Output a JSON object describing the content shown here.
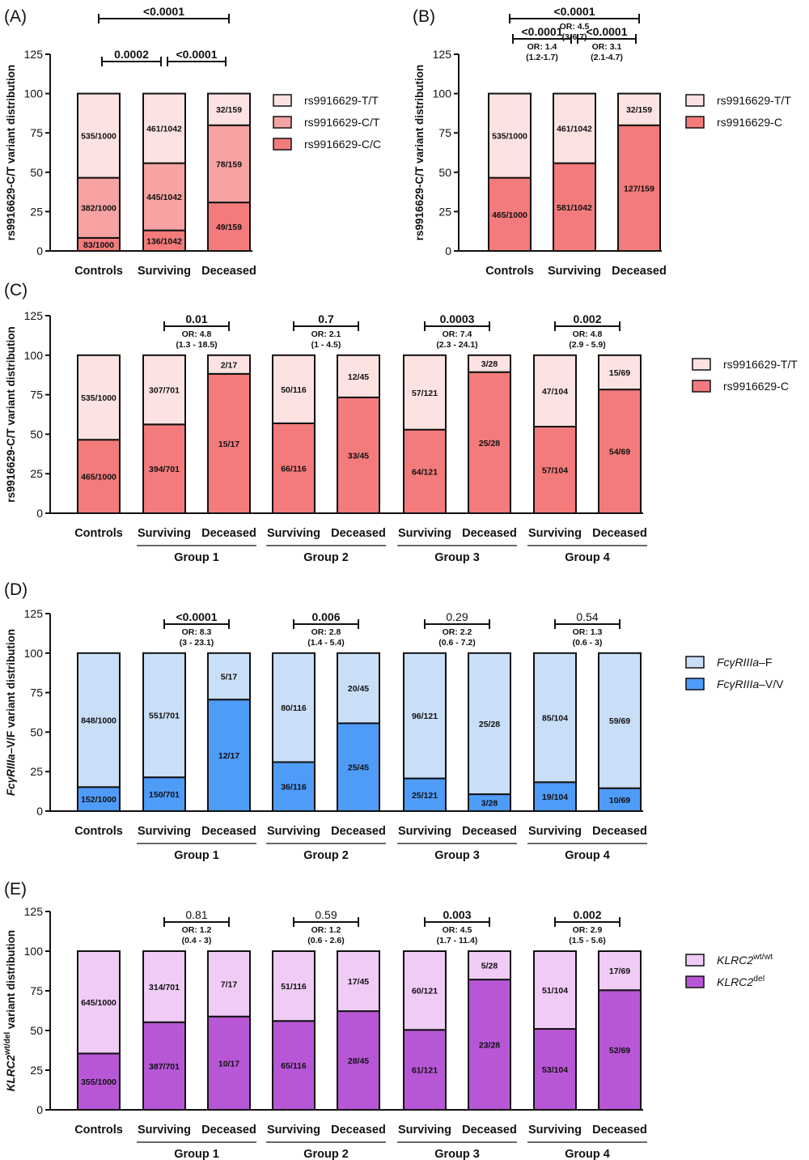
{
  "chart_data": [
    {
      "id": "A",
      "type": "bar",
      "panel_label": "(A)",
      "ylabel": "rs9916629-C/T variant distribution",
      "ylim": [
        0,
        125
      ],
      "yticks": [
        0,
        25,
        50,
        75,
        100,
        125
      ],
      "categories": [
        "Controls",
        "Surviving",
        "Deceased"
      ],
      "groups": [],
      "series": [
        {
          "name": "rs9916629-C/C",
          "color": "#f37b7b",
          "values": [
            8.3,
            13.05,
            30.82
          ],
          "labels": [
            "83/1000",
            "136/1042",
            "49/159"
          ]
        },
        {
          "name": "rs9916629-C/T",
          "color": "#f7a3a3",
          "values": [
            38.2,
            42.71,
            49.06
          ],
          "labels": [
            "382/1000",
            "445/1042",
            "78/159"
          ]
        },
        {
          "name": "rs9916629-T/T",
          "color": "#fde2e2",
          "values": [
            53.5,
            44.24,
            20.13
          ],
          "labels": [
            "535/1000",
            "461/1042",
            "32/159"
          ]
        }
      ],
      "legend": [
        "rs9916629-T/T",
        "rs9916629-C/T",
        "rs9916629-C/C"
      ],
      "legend_position": "right",
      "comparisons": [
        {
          "from": 0,
          "to": 1,
          "p": "0.0002",
          "p_bold": true,
          "or": "",
          "ci": "",
          "level": 1
        },
        {
          "from": 1,
          "to": 2,
          "p": "<0.0001",
          "p_bold": true,
          "or": "",
          "ci": "",
          "level": 1
        },
        {
          "from": 0,
          "to": 2,
          "p": "<0.0001",
          "p_bold": true,
          "or": "",
          "ci": "",
          "level": 2
        }
      ]
    },
    {
      "id": "B",
      "type": "bar",
      "panel_label": "(B)",
      "ylabel": "rs9916629-C/T variant distribution",
      "ylim": [
        0,
        125
      ],
      "yticks": [
        0,
        25,
        50,
        75,
        100,
        125
      ],
      "categories": [
        "Controls",
        "Surviving",
        "Deceased"
      ],
      "groups": [],
      "series": [
        {
          "name": "rs9916629-C",
          "color": "#f37b7b",
          "values": [
            46.5,
            55.76,
            79.87
          ],
          "labels": [
            "465/1000",
            "581/1042",
            "127/159"
          ]
        },
        {
          "name": "rs9916629-T/T",
          "color": "#fde2e2",
          "values": [
            53.5,
            44.24,
            20.13
          ],
          "labels": [
            "535/1000",
            "461/1042",
            "32/159"
          ]
        }
      ],
      "legend": [
        "rs9916629-T/T",
        "rs9916629-C"
      ],
      "legend_position": "right",
      "comparisons": [
        {
          "from": 0,
          "to": 1,
          "p": "<0.0001",
          "p_bold": true,
          "or": "OR: 1.4",
          "ci": "(1.2-1.7)",
          "level": 1
        },
        {
          "from": 1,
          "to": 2,
          "p": "<0.0001",
          "p_bold": true,
          "or": "OR: 3.1",
          "ci": "(2.1-4.7)",
          "level": 1
        },
        {
          "from": 0,
          "to": 2,
          "p": "<0.0001",
          "p_bold": true,
          "or": "OR: 4.5",
          "ci": "(3-6.7)",
          "level": 2
        }
      ]
    },
    {
      "id": "C",
      "type": "bar",
      "panel_label": "(C)",
      "ylabel": "rs9916629-C/T variant distribution",
      "ylim": [
        0,
        125
      ],
      "yticks": [
        0,
        25,
        50,
        75,
        100,
        125
      ],
      "categories": [
        "Controls",
        "Surviving",
        "Deceased",
        "Surviving",
        "Deceased",
        "Surviving",
        "Deceased",
        "Surviving",
        "Deceased"
      ],
      "groups": [
        {
          "label": "Group 1",
          "from": 1,
          "to": 2
        },
        {
          "label": "Group 2",
          "from": 3,
          "to": 4
        },
        {
          "label": "Group 3",
          "from": 5,
          "to": 6
        },
        {
          "label": "Group 4",
          "from": 7,
          "to": 8
        }
      ],
      "series": [
        {
          "name": "rs9916629-C",
          "color": "#f37b7b",
          "values": [
            46.5,
            56.2,
            88.2,
            56.9,
            73.3,
            52.9,
            89.3,
            54.8,
            78.3
          ],
          "labels": [
            "465/1000",
            "394/701",
            "15/17",
            "66/116",
            "33/45",
            "64/121",
            "25/28",
            "57/104",
            "54/69"
          ]
        },
        {
          "name": "rs9916629-T/T",
          "color": "#fde2e2",
          "values": [
            53.5,
            43.8,
            11.8,
            43.1,
            26.7,
            47.1,
            10.7,
            45.2,
            21.7
          ],
          "labels": [
            "535/1000",
            "307/701",
            "2/17",
            "50/116",
            "12/45",
            "57/121",
            "3/28",
            "47/104",
            "15/69"
          ]
        }
      ],
      "legend": [
        "rs9916629-T/T",
        "rs9916629-C"
      ],
      "legend_position": "right",
      "comparisons": [
        {
          "from": 1,
          "to": 2,
          "p": "0.01",
          "p_bold": true,
          "or": "OR: 4.8",
          "ci": "(1.3 - 18.5)",
          "level": 1
        },
        {
          "from": 3,
          "to": 4,
          "p": "0.7",
          "p_bold": true,
          "or": "OR: 2.1",
          "ci": "(1 - 4.5)",
          "level": 1
        },
        {
          "from": 5,
          "to": 6,
          "p": "0.0003",
          "p_bold": true,
          "or": "OR: 7.4",
          "ci": "(2.3 - 24.1)",
          "level": 1
        },
        {
          "from": 7,
          "to": 8,
          "p": "0.002",
          "p_bold": true,
          "or": "OR: 4.8",
          "ci": "(2.9 - 5.9)",
          "level": 1
        }
      ]
    },
    {
      "id": "D",
      "type": "bar",
      "panel_label": "(D)",
      "ylabel": "FcγRIIIa–V/F variant distribution",
      "ylim": [
        0,
        125
      ],
      "yticks": [
        0,
        25,
        50,
        75,
        100,
        125
      ],
      "categories": [
        "Controls",
        "Surviving",
        "Deceased",
        "Surviving",
        "Deceased",
        "Surviving",
        "Deceased",
        "Surviving",
        "Deceased"
      ],
      "groups": [
        {
          "label": "Group 1",
          "from": 1,
          "to": 2
        },
        {
          "label": "Group 2",
          "from": 3,
          "to": 4
        },
        {
          "label": "Group 3",
          "from": 5,
          "to": 6
        },
        {
          "label": "Group 4",
          "from": 7,
          "to": 8
        }
      ],
      "series": [
        {
          "name": "FcγRIIIa–V/V",
          "color": "#4f9bf8",
          "values": [
            15.2,
            21.4,
            70.6,
            31.0,
            55.6,
            20.7,
            10.7,
            18.3,
            14.5
          ],
          "labels": [
            "152/1000",
            "150/701",
            "12/17",
            "36/116",
            "25/45",
            "25/121",
            "3/28",
            "19/104",
            "10/69"
          ]
        },
        {
          "name": "FcγRIIIa–F",
          "color": "#c9def7",
          "values": [
            84.8,
            78.6,
            29.4,
            69.0,
            44.4,
            79.3,
            89.3,
            81.7,
            85.5
          ],
          "labels": [
            "848/1000",
            "551/701",
            "5/17",
            "80/116",
            "20/45",
            "96/121",
            "25/28",
            "85/104",
            "59/69"
          ]
        }
      ],
      "legend": [
        "FcγRIIIa–F",
        "FcγRIIIa–V/V"
      ],
      "legend_position": "right",
      "comparisons": [
        {
          "from": 1,
          "to": 2,
          "p": "<0.0001",
          "p_bold": true,
          "or": "OR: 8.3",
          "ci": "(3 - 23.1)",
          "level": 1
        },
        {
          "from": 3,
          "to": 4,
          "p": "0.006",
          "p_bold": true,
          "or": "OR: 2.8",
          "ci": "(1.4 - 5.4)",
          "level": 1
        },
        {
          "from": 5,
          "to": 6,
          "p": "0.29",
          "p_bold": false,
          "or": "OR: 2.2",
          "ci": "(0.6 - 7.2)",
          "level": 1
        },
        {
          "from": 7,
          "to": 8,
          "p": "0.54",
          "p_bold": false,
          "or": "OR: 1.3",
          "ci": "(0.6 - 3)",
          "level": 1
        }
      ]
    },
    {
      "id": "E",
      "type": "bar",
      "panel_label": "(E)",
      "ylabel": "KLRC2wt/del variant distribution",
      "ylim": [
        0,
        125
      ],
      "yticks": [
        0,
        25,
        50,
        75,
        100,
        125
      ],
      "categories": [
        "Controls",
        "Surviving",
        "Deceased",
        "Surviving",
        "Deceased",
        "Surviving",
        "Deceased",
        "Surviving",
        "Deceased"
      ],
      "groups": [
        {
          "label": "Group 1",
          "from": 1,
          "to": 2
        },
        {
          "label": "Group 2",
          "from": 3,
          "to": 4
        },
        {
          "label": "Group 3",
          "from": 5,
          "to": 6
        },
        {
          "label": "Group 4",
          "from": 7,
          "to": 8
        }
      ],
      "series": [
        {
          "name": "KLRC2del",
          "color": "#b757d6",
          "values": [
            35.5,
            55.2,
            58.8,
            56.0,
            62.2,
            50.4,
            82.1,
            51.0,
            75.4
          ],
          "labels": [
            "355/1000",
            "387/701",
            "10/17",
            "65/116",
            "28/45",
            "61/121",
            "23/28",
            "53/104",
            "52/69"
          ]
        },
        {
          "name": "KLRC2wt/wt",
          "color": "#efcbf5",
          "values": [
            64.5,
            44.8,
            41.2,
            44.0,
            37.8,
            49.6,
            17.9,
            49.0,
            24.6
          ],
          "labels": [
            "645/1000",
            "314/701",
            "7/17",
            "51/116",
            "17/45",
            "60/121",
            "5/28",
            "51/104",
            "17/69"
          ]
        }
      ],
      "legend": [
        "KLRC2wt/wt",
        "KLRC2del"
      ],
      "legend_position": "right",
      "comparisons": [
        {
          "from": 1,
          "to": 2,
          "p": "0.81",
          "p_bold": false,
          "or": "OR: 1.2",
          "ci": "(0.4 - 3)",
          "level": 1
        },
        {
          "from": 3,
          "to": 4,
          "p": "0.59",
          "p_bold": false,
          "or": "OR: 1.2",
          "ci": "(0.6 - 2.6)",
          "level": 1
        },
        {
          "from": 5,
          "to": 6,
          "p": "0.003",
          "p_bold": true,
          "or": "OR: 4.5",
          "ci": "(1.7 - 11.4)",
          "level": 1
        },
        {
          "from": 7,
          "to": 8,
          "p": "0.002",
          "p_bold": true,
          "or": "OR: 2.9",
          "ci": "(1.5 - 5.6)",
          "level": 1
        }
      ]
    }
  ]
}
